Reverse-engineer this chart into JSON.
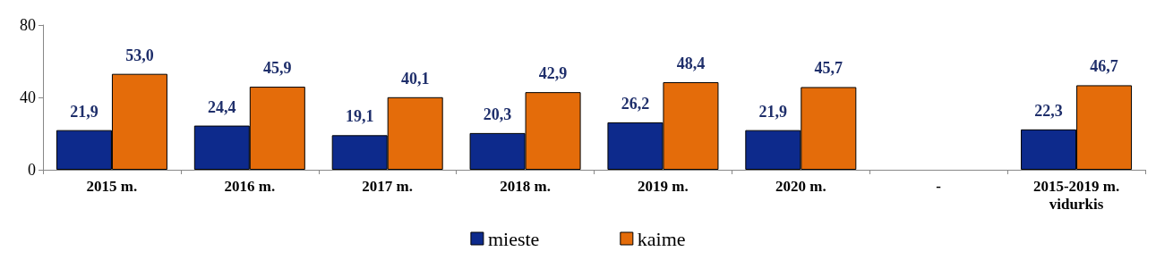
{
  "chart_data": {
    "type": "bar",
    "categories": [
      "2015 m.",
      "2016 m.",
      "2017 m.",
      "2018 m.",
      "2019 m.",
      "2020 m.",
      "-",
      "2015-2019 m.\nvidurkis"
    ],
    "series": [
      {
        "name": "mieste",
        "color": "#0d2a8c",
        "values": [
          21.9,
          24.4,
          19.1,
          20.3,
          26.2,
          21.9,
          null,
          22.3
        ],
        "value_labels": [
          "21,9",
          "24,4",
          "19,1",
          "20,3",
          "26,2",
          "21,9",
          null,
          "22,3"
        ]
      },
      {
        "name": "kaime",
        "color": "#e46c0a",
        "values": [
          53.0,
          45.9,
          40.1,
          42.9,
          48.4,
          45.7,
          null,
          46.7
        ],
        "value_labels": [
          "53,0",
          "45,9",
          "40,1",
          "42,9",
          "48,4",
          "45,7",
          null,
          "46,7"
        ]
      }
    ],
    "ylim": [
      0,
      80
    ],
    "yticks": [
      0,
      40,
      80
    ],
    "grid": false,
    "legend": "bottom"
  }
}
